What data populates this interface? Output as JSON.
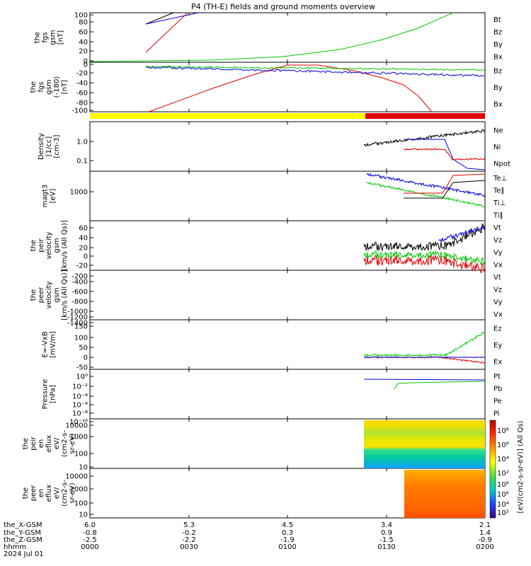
{
  "title": "P4 (TH-E) fields and ground moments overview",
  "panels": [
    {
      "id": "fgs_gsm",
      "ylabel": [
        "the",
        "fgs",
        "gsm",
        "[nT]"
      ],
      "ticks": [
        "100",
        "80",
        "60",
        "40",
        "20",
        "0"
      ],
      "legend": [
        {
          "t": "Bt",
          "c": "#000000"
        },
        {
          "t": "Bz",
          "c": "#e00000"
        },
        {
          "t": "By",
          "c": "#00c800"
        },
        {
          "t": "Bx",
          "c": "#0000e0"
        }
      ]
    },
    {
      "id": "fgs_gsm_neg",
      "ylabel": [
        "the",
        "fgs",
        "gsm",
        "(-180)",
        "[nT]"
      ],
      "ticks": [
        "0",
        "-20",
        "-40",
        "-60",
        "-80",
        "-100"
      ],
      "legend": [
        {
          "t": "Bz",
          "c": "#e00000"
        },
        {
          "t": "By",
          "c": "#00c800"
        },
        {
          "t": "Bx",
          "c": "#0000e0"
        }
      ]
    },
    {
      "id": "density",
      "ylabel": [
        "Density",
        "[1/cc]",
        "[cm-3]"
      ],
      "ticks": [
        "1.0",
        "0.1"
      ],
      "legend": [
        {
          "t": "Ne",
          "c": "#e00000"
        },
        {
          "t": "Ni",
          "c": "#000000"
        },
        {
          "t": "Npot",
          "c": "#0000e0"
        }
      ]
    },
    {
      "id": "temp",
      "ylabel": [
        "magt3",
        "[eV]"
      ],
      "ticks": [
        "1000"
      ],
      "legend": [
        {
          "t": "Te⊥",
          "c": "#e00000"
        },
        {
          "t": "Te∥",
          "c": "#000000"
        },
        {
          "t": "Ti⊥",
          "c": "#0000e0"
        },
        {
          "t": "Ti∥",
          "c": "#00c800"
        }
      ]
    },
    {
      "id": "peir_v",
      "ylabel": [
        "the",
        "peir",
        "velocity",
        "gsm",
        "[km/s (All Qs)]"
      ],
      "ticks": [
        "60",
        "40",
        "20",
        "0",
        "-20"
      ],
      "legend": [
        {
          "t": "Vt",
          "c": "#000000"
        },
        {
          "t": "Vz",
          "c": "#e00000"
        },
        {
          "t": "Vy",
          "c": "#00c800"
        },
        {
          "t": "Vx",
          "c": "#0000e0"
        }
      ]
    },
    {
      "id": "peer_v",
      "ylabel": [
        "the",
        "peer",
        "velocity",
        "gsm",
        "[km/s (All Qs)]"
      ],
      "ticks": [
        "-200",
        "-400",
        "-600",
        "-800",
        "-1000",
        "-1200",
        "-1400"
      ],
      "legend": [
        {
          "t": "Vt",
          "c": "#000000"
        },
        {
          "t": "Vz",
          "c": "#e00000"
        },
        {
          "t": "Vy",
          "c": "#00c800"
        },
        {
          "t": "Vx",
          "c": "#0000e0"
        }
      ]
    },
    {
      "id": "efield",
      "ylabel": [
        "E=-VxB",
        "[mV/m]"
      ],
      "ticks": [
        "150",
        "100",
        "50",
        "0",
        "-50"
      ],
      "legend": [
        {
          "t": "Ez",
          "c": "#e00000"
        },
        {
          "t": "Ey",
          "c": "#00c800"
        },
        {
          "t": "Ex",
          "c": "#0000e0"
        }
      ]
    },
    {
      "id": "pressure",
      "ylabel": [
        "Pressure",
        "[nPa]"
      ],
      "ticks": [
        "10⁰",
        "10⁻²",
        "10⁻⁴",
        "10⁻⁶",
        "10⁻⁸",
        "10⁻¹⁰"
      ],
      "legend": [
        {
          "t": "Pt",
          "c": "#000000"
        },
        {
          "t": "Pb",
          "c": "#e00000"
        },
        {
          "t": "Pe",
          "c": "#00c800"
        },
        {
          "t": "Pi",
          "c": "#0000e0"
        }
      ]
    },
    {
      "id": "peir_en",
      "ylabel": [
        "the",
        "peir",
        "en",
        "eflux",
        "eV/",
        "(cm2-s-",
        "sr-eV)"
      ],
      "ticks": [
        "10000",
        "1000",
        "100",
        "10"
      ]
    },
    {
      "id": "peer_en",
      "ylabel": [
        "the",
        "peer",
        "en",
        "eflux",
        "eV/",
        "(cm2-s-",
        "sr-eV)"
      ],
      "ticks": [
        "10000",
        "1000",
        "100",
        "10"
      ]
    }
  ],
  "colorbar": {
    "ticks": [
      "10⁸",
      "10⁶",
      "10⁴",
      "10²"
    ],
    "label": "[eV/(cm2-s-sr-eV)] (All Qs)"
  },
  "xaxis": {
    "row_labels": [
      "the_X-GSM",
      "the_Y-GSM",
      "the_Z-GSM",
      "hhmm",
      "2024 Jul 01"
    ],
    "columns": [
      [
        "6.0",
        "-0.8",
        "-2.5",
        "0000"
      ],
      [
        "5.3",
        "-0.2",
        "-2.2",
        "0030"
      ],
      [
        "4.5",
        "0.3",
        "-1.9",
        "0100"
      ],
      [
        "3.4",
        "0.9",
        "-1.5",
        "0130"
      ],
      [
        "2.1",
        "1.4",
        "-0.9",
        "0200"
      ]
    ]
  },
  "chart_data": {
    "type": "line",
    "title": "P4 (TH-E) fields and ground moments overview",
    "x_axis": "hhmm, 2024 Jul 01",
    "x_ticks": [
      "0000",
      "0030",
      "0100",
      "0130",
      "0200"
    ],
    "series": [
      {
        "name": "Bx",
        "panel": "fgs_gsm",
        "x": [
          "0030",
          "0045"
        ],
        "values": [
          76,
          100
        ]
      },
      {
        "name": "Bz",
        "panel": "fgs_gsm",
        "x": [
          "0030",
          "0045"
        ],
        "values": [
          12,
          100
        ]
      },
      {
        "name": "By",
        "panel": "fgs_gsm",
        "x": [
          "0000",
          "0100",
          "0130",
          "0155"
        ],
        "values": [
          0,
          12,
          42,
          100
        ]
      },
      {
        "name": "Bz",
        "panel": "fgs_gsm_neg",
        "x": [
          "0015",
          "0100",
          "0130",
          "0150",
          "0200"
        ],
        "values": [
          -100,
          -4,
          -30,
          -100,
          -100
        ]
      },
      {
        "name": "Bx",
        "panel": "fgs_gsm_neg",
        "x": [
          "0030",
          "0130",
          "0200"
        ],
        "values": [
          -8,
          -18,
          -28
        ]
      },
      {
        "name": "By",
        "panel": "fgs_gsm_neg",
        "x": [
          "0030",
          "0130",
          "0200"
        ],
        "values": [
          -5,
          -7,
          -15
        ]
      },
      {
        "name": "Ni",
        "panel": "density",
        "x": [
          "0125",
          "0145",
          "0200"
        ],
        "values": [
          0.8,
          1.2,
          4.0
        ]
      },
      {
        "name": "Ne",
        "panel": "density",
        "x": [
          "0130",
          "0145",
          "0200"
        ],
        "values": [
          0.5,
          0.5,
          0.2
        ]
      },
      {
        "name": "Vt",
        "panel": "peir_v",
        "x": [
          "0125",
          "0140",
          "0200"
        ],
        "values": [
          20,
          20,
          70
        ]
      },
      {
        "name": "Ey",
        "panel": "efield",
        "x": [
          "0125",
          "0150",
          "0200"
        ],
        "values": [
          0,
          30,
          100
        ]
      },
      {
        "name": "Pt",
        "panel": "pressure",
        "x": [
          "0125",
          "0200"
        ],
        "values": [
          0.5,
          0.5
        ]
      }
    ]
  }
}
